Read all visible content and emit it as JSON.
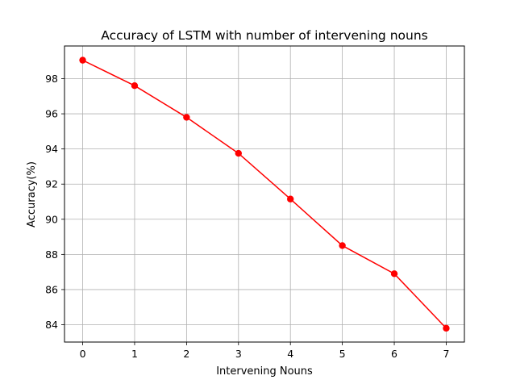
{
  "chart_data": {
    "type": "line",
    "title": "Accuracy of LSTM with number of intervening nouns",
    "xlabel": "Intervening Nouns",
    "ylabel": "Accuracy(%)",
    "x": [
      0,
      1,
      2,
      3,
      4,
      5,
      6,
      7
    ],
    "xticks": [
      "0",
      "1",
      "2",
      "3",
      "4",
      "5",
      "6",
      "7"
    ],
    "yticks": [
      "84",
      "86",
      "88",
      "90",
      "92",
      "94",
      "96",
      "98"
    ],
    "xlim": [
      -0.35,
      7.35
    ],
    "ylim": [
      83.0,
      97.6
    ],
    "grid": true,
    "series": [
      {
        "color": "#ff0000",
        "marker": "circle",
        "values": [
          99.05,
          97.6,
          95.8,
          93.75,
          91.15,
          88.5,
          86.9,
          83.8
        ]
      }
    ]
  }
}
